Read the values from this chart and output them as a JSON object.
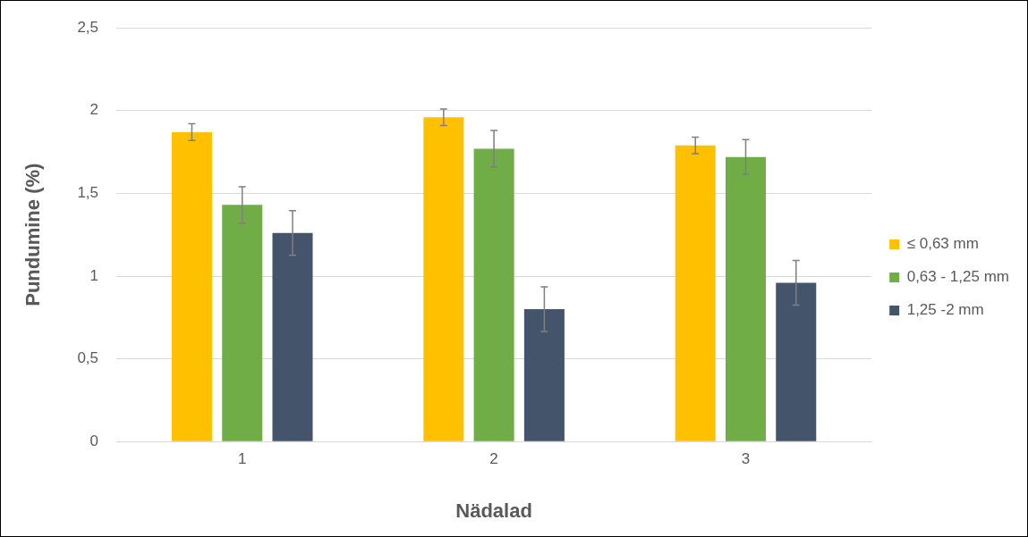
{
  "chart_data": {
    "type": "bar",
    "xlabel": "Nädalad",
    "ylabel": "Pundumine (%)",
    "categories": [
      "1",
      "2",
      "3"
    ],
    "series": [
      {
        "name": "≤ 0,63 mm",
        "color": "#ffc000",
        "values": [
          1.87,
          1.96,
          1.79
        ],
        "errors": [
          0.05,
          0.05,
          0.05
        ]
      },
      {
        "name": "0,63 - 1,25 mm",
        "color": "#70ad47",
        "values": [
          1.43,
          1.77,
          1.72
        ],
        "errors": [
          0.11,
          0.11,
          0.105
        ]
      },
      {
        "name": "1,25 -2 mm",
        "color": "#44546a",
        "values": [
          1.26,
          0.8,
          0.96
        ],
        "errors": [
          0.135,
          0.135,
          0.135
        ]
      }
    ],
    "ylim": [
      0,
      2.5
    ],
    "yticks": [
      {
        "value": 0,
        "label": "0"
      },
      {
        "value": 0.5,
        "label": "0,5"
      },
      {
        "value": 1,
        "label": "1"
      },
      {
        "value": 1.5,
        "label": "1,5"
      },
      {
        "value": 2,
        "label": "2"
      },
      {
        "value": 2.5,
        "label": "2,5"
      }
    ],
    "grid": "y",
    "legend": "right"
  }
}
